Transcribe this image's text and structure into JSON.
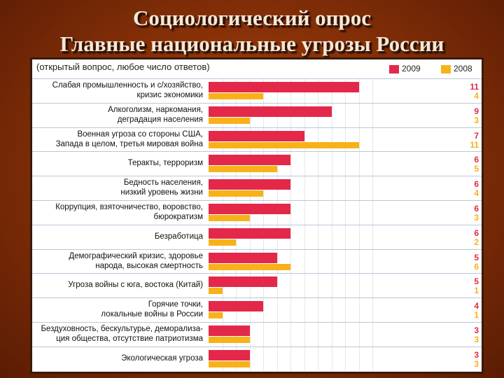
{
  "slide": {
    "title_line1": "Социологический опрос",
    "title_line2": "Главные национальные угрозы России"
  },
  "chart_data": {
    "type": "bar",
    "orientation": "horizontal",
    "note": "(открытый вопрос, любое число ответов)",
    "categories": [
      [
        "Слабая промышленность и с/хозяйство,",
        "кризис экономики"
      ],
      [
        "Алкоголизм, наркомания,",
        "деградация населения"
      ],
      [
        "Военная угроза со стороны США,",
        "Запада в целом, третья мировая война"
      ],
      [
        "Теракты, терроризм"
      ],
      [
        "Бедность населения,",
        "низкий уровень жизни"
      ],
      [
        "Коррупция,  взяточничество, воровство,",
        "бюрократизм"
      ],
      [
        "Безработица"
      ],
      [
        "Демографический кризис, здоровье",
        "народа, высокая смертность"
      ],
      [
        "Угроза войны с юга, востока (Китай)"
      ],
      [
        "Горячие точки,",
        "локальные войны в России"
      ],
      [
        "Бездуховность, бескультурье, деморализа-",
        "ция общества, отсутствие патриотизма"
      ],
      [
        "Экологическая угроза"
      ]
    ],
    "series": [
      {
        "name": "2009",
        "color": "#e4284a",
        "values": [
          11,
          9,
          7,
          6,
          6,
          6,
          6,
          5,
          5,
          4,
          3,
          3
        ]
      },
      {
        "name": "2008",
        "color": "#f7b21a",
        "values": [
          4,
          3,
          11,
          5,
          4,
          3,
          2,
          6,
          1,
          1,
          3,
          3
        ]
      }
    ],
    "xlim": [
      0,
      12
    ],
    "grid": true,
    "legend": "top-right"
  }
}
